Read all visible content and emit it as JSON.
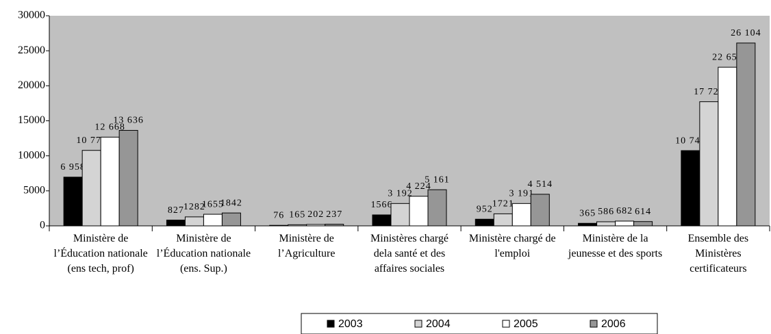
{
  "chart_data": {
    "type": "bar",
    "categories": [
      "Ministère de l’Éducation nationale (ens tech, prof)",
      "Ministère de l’Éducation nationale (ens. Sup.)",
      "Ministère de l’Agriculture",
      "Ministères chargé dela santé et des affaires sociales",
      "Ministère chargé de l'emploi",
      "Ministère de la jeunesse et des sports",
      "Ensemble des Ministères certificateurs"
    ],
    "series": [
      {
        "name": "2003",
        "color": "#000000",
        "values": [
          6958,
          827,
          76,
          1566,
          952,
          365,
          10744
        ],
        "value_labels": [
          "6 958",
          "827",
          "76",
          "1566",
          "952",
          "365",
          "10 744"
        ]
      },
      {
        "name": "2004",
        "color": "#d4d4d4",
        "values": [
          10778,
          1282,
          165,
          3192,
          1721,
          586,
          17724
        ],
        "value_labels": [
          "10 778",
          "1282",
          "165",
          "3 192",
          "1721",
          "586",
          "17 724"
        ]
      },
      {
        "name": "2005",
        "color": "#ffffff",
        "values": [
          12668,
          1655,
          202,
          4224,
          3191,
          682,
          22652
        ],
        "value_labels": [
          "12 668",
          "1655",
          "202",
          "4 224",
          "3 191",
          "682",
          "22 652"
        ]
      },
      {
        "name": "2006",
        "color": "#969696",
        "values": [
          13636,
          1842,
          237,
          5161,
          4514,
          614,
          26104
        ],
        "value_labels": [
          "13 636",
          "1842",
          "237",
          "5 161",
          "4 514",
          "614",
          "26 104"
        ]
      }
    ],
    "ylim": [
      0,
      30000
    ],
    "yticks": [
      0,
      5000,
      10000,
      15000,
      20000,
      25000,
      30000
    ],
    "legend": "bottom",
    "plot_background": "#c0c0c0"
  }
}
